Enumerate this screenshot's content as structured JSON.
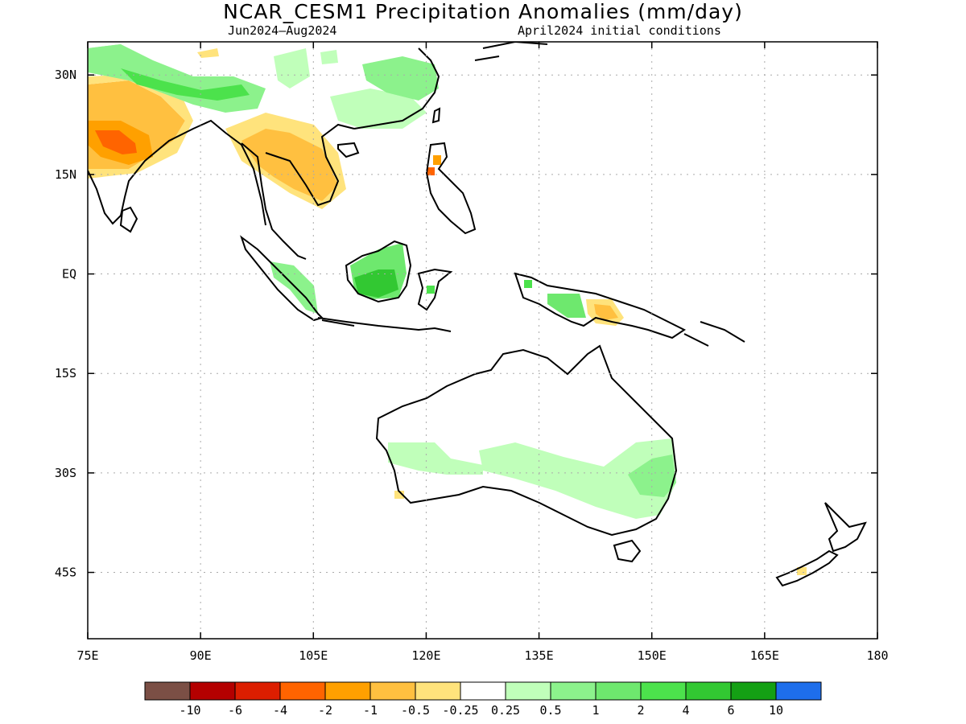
{
  "title": "NCAR_CESM1 Precipitation Anomalies (mm/day)",
  "period": "Jun2024–Aug2024",
  "initial_conditions": "April2024 initial conditions",
  "map": {
    "x_ticks": [
      {
        "lon": 75,
        "label": "75E"
      },
      {
        "lon": 90,
        "label": "90E"
      },
      {
        "lon": 105,
        "label": "105E"
      },
      {
        "lon": 120,
        "label": "120E"
      },
      {
        "lon": 135,
        "label": "135E"
      },
      {
        "lon": 150,
        "label": "150E"
      },
      {
        "lon": 165,
        "label": "165E"
      },
      {
        "lon": 180,
        "label": "180"
      }
    ],
    "y_ticks": [
      {
        "lat": 30,
        "label": "30N"
      },
      {
        "lat": 15,
        "label": "15N"
      },
      {
        "lat": 0,
        "label": "EQ"
      },
      {
        "lat": -15,
        "label": "15S"
      },
      {
        "lat": -30,
        "label": "30S"
      },
      {
        "lat": -45,
        "label": "45S"
      }
    ],
    "lon_range": [
      75,
      180
    ],
    "lat_range": [
      -55,
      35
    ],
    "grid": true
  },
  "colorbar": {
    "colors": [
      "#7b4f45",
      "#b40000",
      "#dc1e00",
      "#ff6400",
      "#ffa000",
      "#ffc040",
      "#ffe37c",
      "#ffffff",
      "#c0ffba",
      "#8cf28c",
      "#6ee86e",
      "#4ce24c",
      "#32c832",
      "#14a014",
      "#1e6eeb"
    ],
    "labels": [
      "-10",
      "-6",
      "-4",
      "-2",
      "-1",
      "-0.5",
      "-0.25",
      "0.25",
      "0.5",
      "1",
      "2",
      "4",
      "6",
      "10"
    ]
  },
  "anomaly_regions": [
    {
      "name": "south-asia-dry",
      "level": "-1"
    },
    {
      "name": "india-dry-core",
      "level": "-2"
    },
    {
      "name": "himalaya-wet",
      "level": "2"
    },
    {
      "name": "indochina-dry",
      "level": "-1"
    },
    {
      "name": "borneo-wet",
      "level": "2"
    },
    {
      "name": "sumatra-wet",
      "level": "0.5"
    },
    {
      "name": "new-guinea-dry",
      "level": "-0.5"
    },
    {
      "name": "australia-wet-east",
      "level": "0.5"
    },
    {
      "name": "australia-wet-west",
      "level": "0.25"
    }
  ]
}
